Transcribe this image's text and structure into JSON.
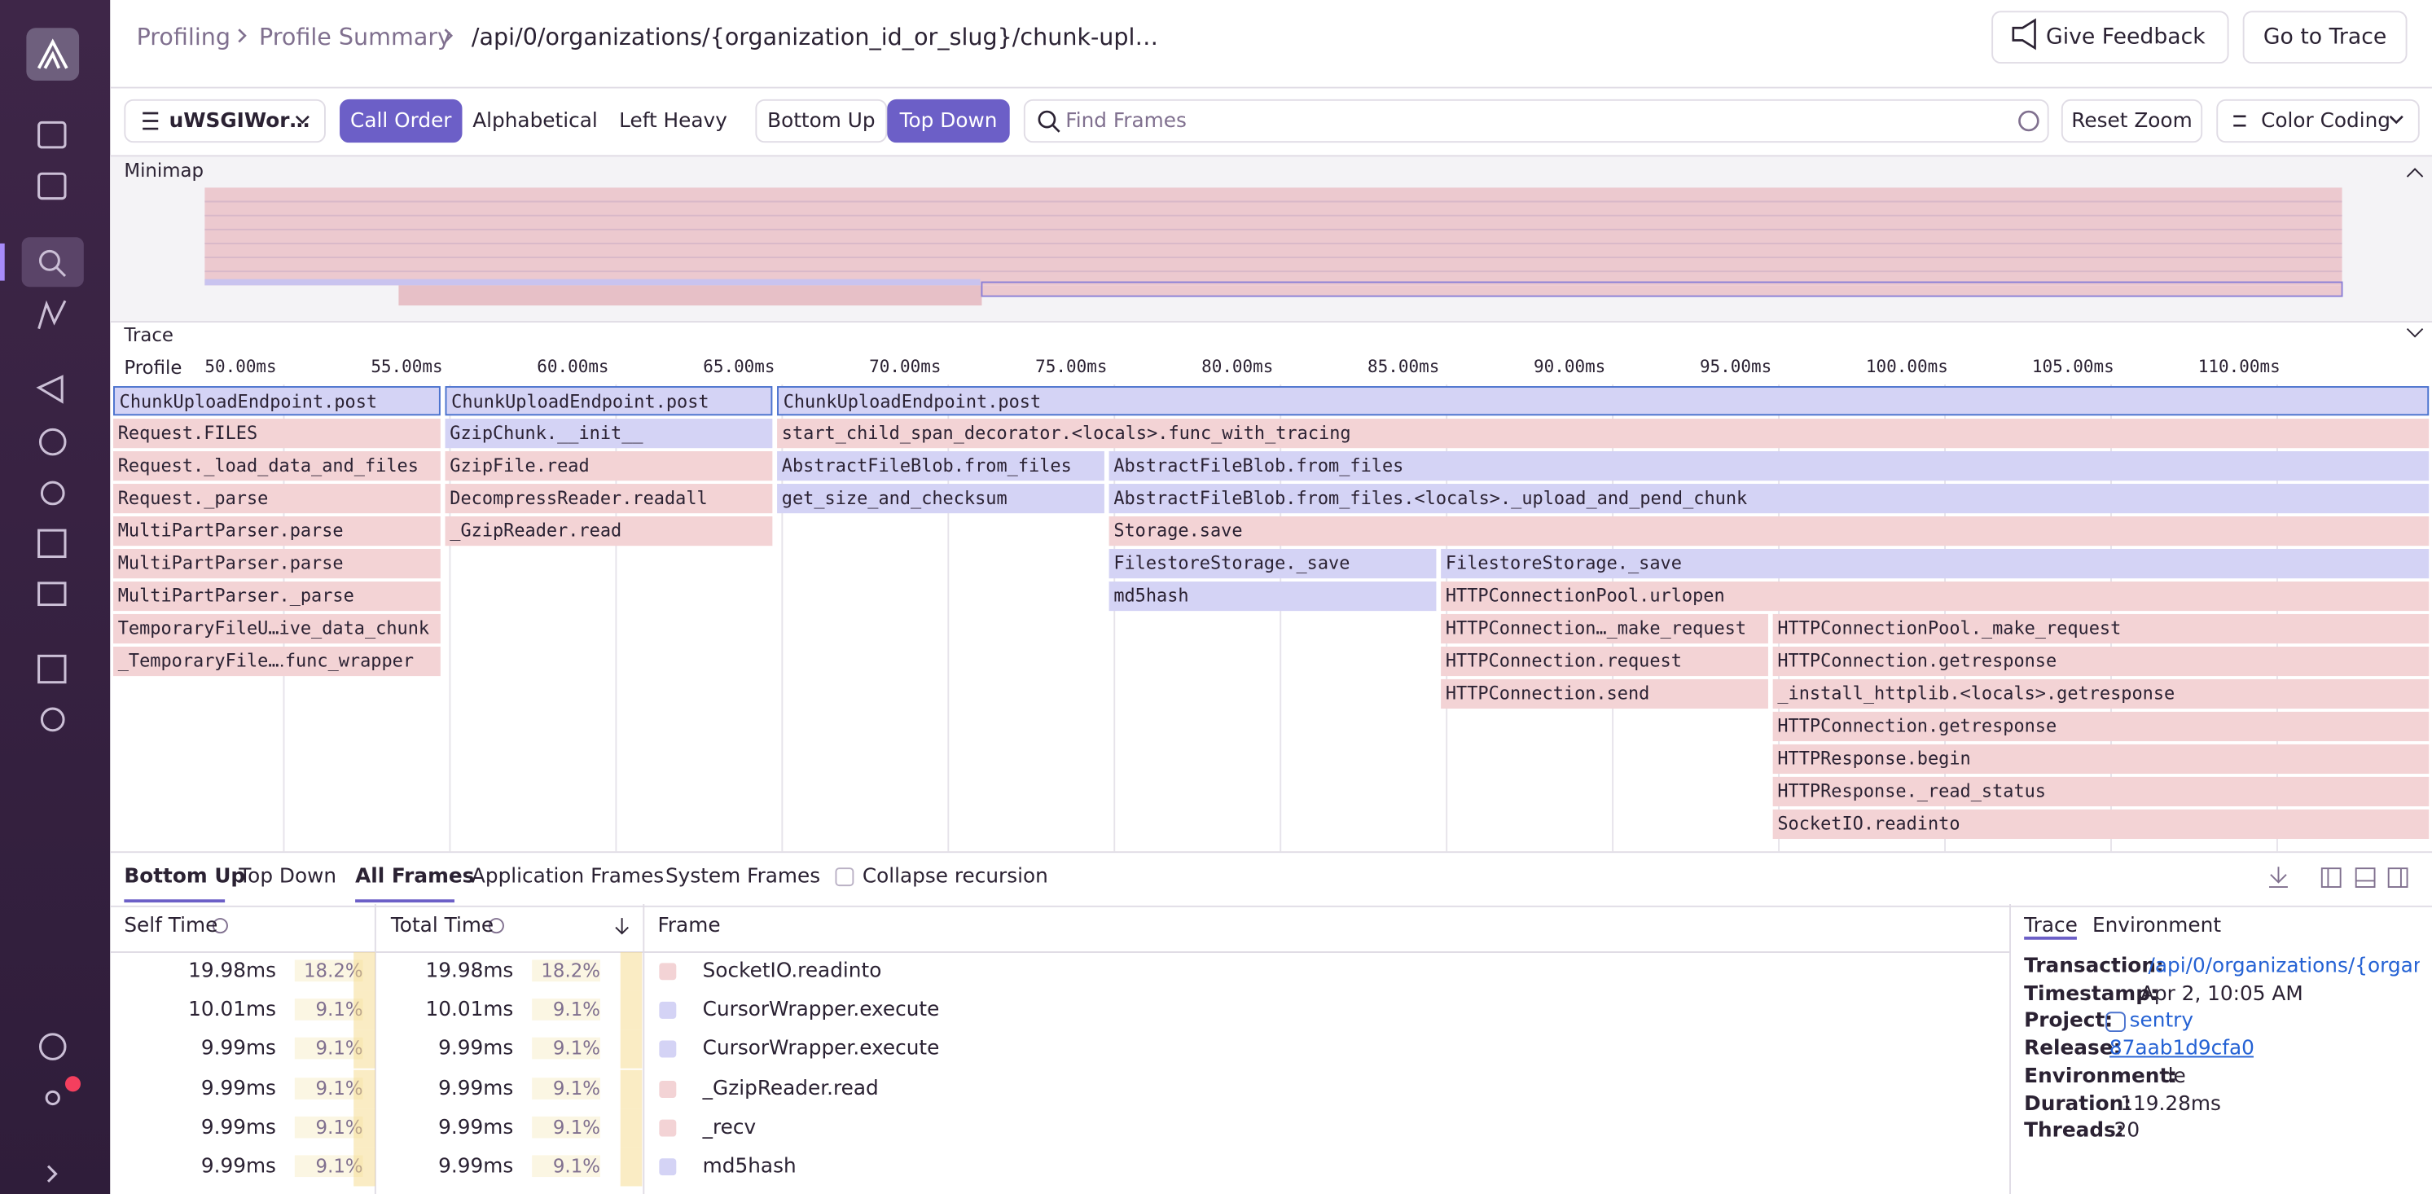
{
  "breadcrumbs": [
    "Profiling",
    "Profile Summary",
    "/api/0/organizations/{organization_id_or_slug}/chunk-upl…"
  ],
  "header_buttons": [
    "Give Feedback",
    "Go to Trace"
  ],
  "toolbar": {
    "thread": "uWSGIWor…",
    "sort_options": [
      "Call Order",
      "Alphabetical",
      "Left Heavy"
    ],
    "view_options": [
      "Bottom Up",
      "Top Down"
    ],
    "search_placeholder": "Find Frames",
    "reset": "Reset Zoom",
    "color_coding": "Color Coding"
  },
  "minimap_label": "Minimap",
  "trace_label": "Trace",
  "profile_label": "Profile",
  "time_ticks": [
    "50.00ms",
    "55.00ms",
    "60.00ms",
    "65.00ms",
    "70.00ms",
    "75.00ms",
    "80.00ms",
    "85.00ms",
    "90.00ms",
    "95.00ms",
    "100.00ms",
    "105.00ms",
    "110.00ms"
  ],
  "flame": [
    [
      "ChunkUploadEndpoint.post",
      "ChunkUploadEndpoint.post",
      "ChunkUploadEndpoint.post"
    ],
    [
      "Request.FILES",
      "GzipChunk.__init__",
      "start_child_span_decorator.<locals>.func_with_tracing"
    ],
    [
      "Request._load_data_and_files",
      "GzipFile.read",
      "AbstractFileBlob.from_files",
      "AbstractFileBlob.from_files"
    ],
    [
      "Request._parse",
      "DecompressReader.readall",
      "get_size_and_checksum",
      "AbstractFileBlob.from_files.<locals>._upload_and_pend_chunk"
    ],
    [
      "MultiPartParser.parse",
      "_GzipReader.read",
      "Storage.save"
    ],
    [
      "MultiPartParser.parse",
      "FilestoreStorage._save",
      "FilestoreStorage._save"
    ],
    [
      "MultiPartParser._parse",
      "md5hash",
      "HTTPConnectionPool.urlopen"
    ],
    [
      "TemporaryFileU…ive_data_chunk",
      "HTTPConnection…_make_request",
      "HTTPConnectionPool._make_request"
    ],
    [
      "_TemporaryFile…․func_wrapper",
      "HTTPConnection.request",
      "HTTPConnection.getresponse"
    ],
    [
      "HTTPConnection.send",
      "_install_httplib.<locals>.getresponse"
    ],
    [
      "HTTPConnection.getresponse"
    ],
    [
      "HTTPResponse.begin"
    ],
    [
      "HTTPResponse._read_status"
    ],
    [
      "SocketIO.readinto"
    ]
  ],
  "bottom_tabs": [
    "Bottom Up",
    "Top Down",
    "All Frames",
    "Application Frames",
    "System Frames",
    "Collapse recursion"
  ],
  "table": {
    "headers": [
      "Self Time",
      "Total Time",
      "Frame"
    ],
    "rows": [
      [
        "19.98ms",
        "18.2%",
        "19.98ms",
        "18.2%",
        "SocketIO.readinto"
      ],
      [
        "10.01ms",
        "9.1%",
        "10.01ms",
        "9.1%",
        "CursorWrapper.execute"
      ],
      [
        "9.99ms",
        "9.1%",
        "9.99ms",
        "9.1%",
        "CursorWrapper.execute"
      ],
      [
        "9.99ms",
        "9.1%",
        "9.99ms",
        "9.1%",
        "_GzipReader.read"
      ],
      [
        "9.99ms",
        "9.1%",
        "9.99ms",
        "9.1%",
        "_recv"
      ],
      [
        "9.99ms",
        "9.1%",
        "9.99ms",
        "9.1%",
        "md5hash"
      ]
    ]
  },
  "details": {
    "tabs": [
      "Trace",
      "Environment"
    ],
    "fields": [
      [
        "Transaction:",
        "/api/0/organizations/{organ…"
      ],
      [
        "Timestamp:",
        "Apr 2, 10:05 AM"
      ],
      [
        "Project:",
        "sentry"
      ],
      [
        "Release:",
        "87aab1d9cfa0"
      ],
      [
        "Environment:",
        "de"
      ],
      [
        "Duration:",
        "119.28ms"
      ],
      [
        "Threads:",
        "20"
      ]
    ]
  }
}
